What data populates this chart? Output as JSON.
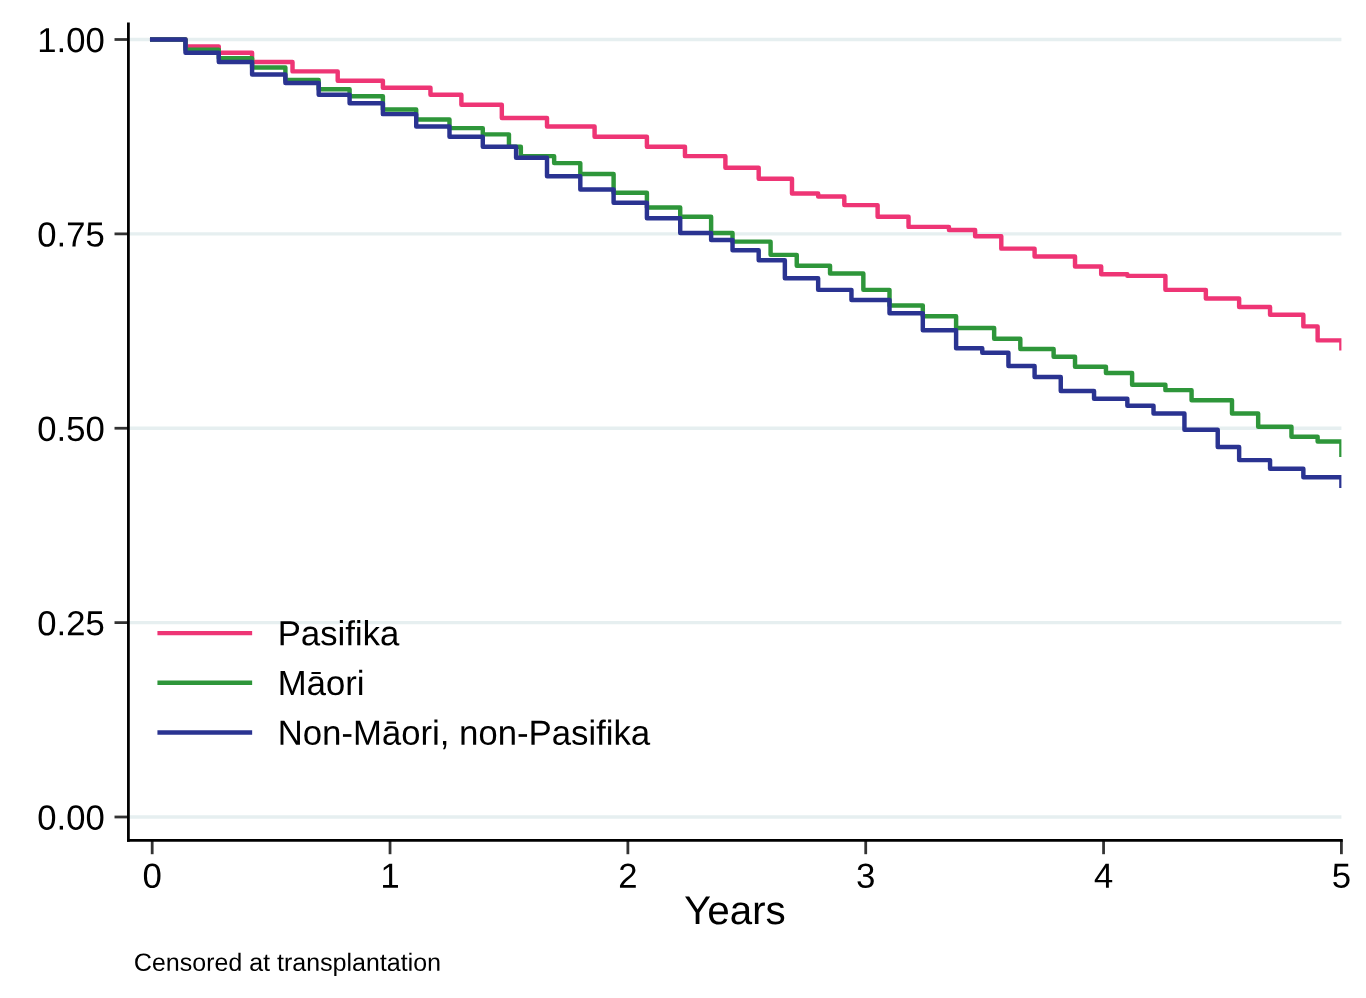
{
  "chart_data": {
    "type": "step",
    "xlabel": "Years",
    "xlim": [
      -0.1,
      5
    ],
    "ylim": [
      -0.03,
      1.02
    ],
    "xticks": [
      0,
      1,
      2,
      3,
      4,
      5
    ],
    "yticks": [
      {
        "value": 0,
        "label": "0.00"
      },
      {
        "value": 0.25,
        "label": "0.25"
      },
      {
        "value": 0.5,
        "label": "0.50"
      },
      {
        "value": 0.75,
        "label": "0.75"
      },
      {
        "value": 1,
        "label": "1.00"
      }
    ],
    "grid": "y",
    "legend": "bottom left",
    "annotations": [
      "Censored at transplantation"
    ],
    "series": [
      {
        "name": "Pasifika",
        "color": "#ee3575",
        "x": [
          0,
          0.14,
          0.28,
          0.42,
          0.59,
          0.78,
          0.97,
          1.17,
          1.3,
          1.47,
          1.66,
          1.86,
          2.08,
          2.24,
          2.41,
          2.55,
          2.69,
          2.8,
          2.91,
          3.05,
          3.18,
          3.35,
          3.46,
          3.57,
          3.71,
          3.88,
          3.99,
          4.1,
          4.26,
          4.43,
          4.57,
          4.7,
          4.84,
          4.9,
          5.0
        ],
        "values": [
          1.0,
          0.991,
          0.983,
          0.971,
          0.959,
          0.947,
          0.938,
          0.929,
          0.916,
          0.899,
          0.888,
          0.875,
          0.862,
          0.85,
          0.835,
          0.821,
          0.802,
          0.798,
          0.787,
          0.772,
          0.759,
          0.755,
          0.747,
          0.731,
          0.721,
          0.708,
          0.698,
          0.696,
          0.678,
          0.667,
          0.656,
          0.646,
          0.631,
          0.613,
          0.603
        ]
      },
      {
        "name": "Māori",
        "color": "#2e963a",
        "x": [
          0,
          0.14,
          0.28,
          0.42,
          0.56,
          0.7,
          0.83,
          0.97,
          1.11,
          1.25,
          1.39,
          1.5,
          1.55,
          1.69,
          1.8,
          1.94,
          2.08,
          2.22,
          2.35,
          2.44,
          2.6,
          2.71,
          2.85,
          2.99,
          3.1,
          3.24,
          3.38,
          3.54,
          3.65,
          3.79,
          3.88,
          4.01,
          4.12,
          4.26,
          4.37,
          4.54,
          4.65,
          4.79,
          4.9,
          5.0
        ],
        "values": [
          1.0,
          0.987,
          0.976,
          0.964,
          0.948,
          0.936,
          0.927,
          0.91,
          0.897,
          0.886,
          0.878,
          0.862,
          0.85,
          0.841,
          0.827,
          0.803,
          0.784,
          0.772,
          0.751,
          0.74,
          0.723,
          0.709,
          0.699,
          0.678,
          0.658,
          0.644,
          0.629,
          0.615,
          0.602,
          0.592,
          0.579,
          0.571,
          0.556,
          0.549,
          0.536,
          0.519,
          0.502,
          0.489,
          0.483,
          0.466
        ]
      },
      {
        "name": "Non-Māori, non-Pasifika",
        "color": "#2a3391",
        "x": [
          0,
          0.14,
          0.28,
          0.42,
          0.56,
          0.7,
          0.83,
          0.97,
          1.11,
          1.25,
          1.39,
          1.53,
          1.66,
          1.8,
          1.94,
          2.08,
          2.22,
          2.35,
          2.44,
          2.55,
          2.66,
          2.8,
          2.94,
          3.1,
          3.24,
          3.38,
          3.49,
          3.6,
          3.71,
          3.82,
          3.96,
          4.1,
          4.21,
          4.34,
          4.48,
          4.57,
          4.7,
          4.84,
          5.0
        ],
        "values": [
          1.0,
          0.983,
          0.971,
          0.955,
          0.944,
          0.929,
          0.918,
          0.904,
          0.888,
          0.875,
          0.862,
          0.848,
          0.824,
          0.807,
          0.79,
          0.77,
          0.751,
          0.742,
          0.729,
          0.716,
          0.693,
          0.678,
          0.665,
          0.648,
          0.626,
          0.603,
          0.597,
          0.58,
          0.566,
          0.548,
          0.538,
          0.529,
          0.519,
          0.498,
          0.476,
          0.459,
          0.448,
          0.437,
          0.426
        ]
      }
    ]
  }
}
